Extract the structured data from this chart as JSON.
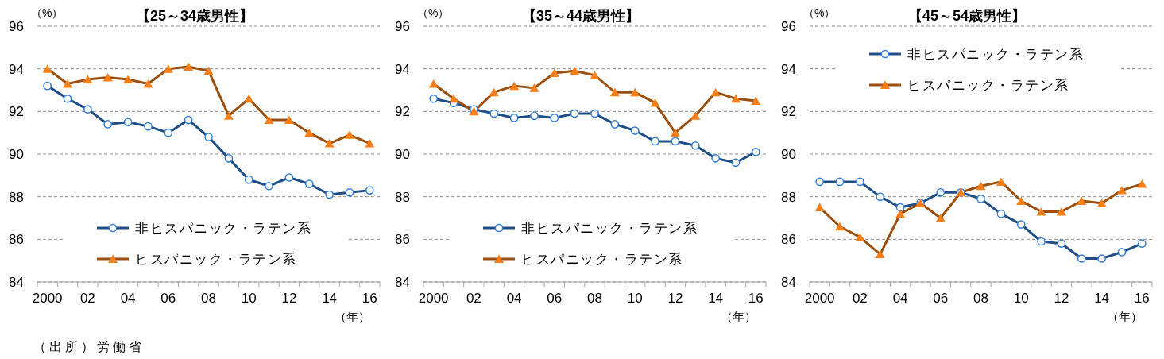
{
  "chart_data": [
    {
      "type": "line",
      "title": "【25～34歳男性】",
      "ylabel": "（%）",
      "xlabel": "（年）",
      "annotations": [
        "（出所）労働省"
      ],
      "categories": [
        "2000",
        null,
        "02",
        null,
        "04",
        null,
        "06",
        null,
        "08",
        null,
        "10",
        null,
        "12",
        null,
        "14",
        null,
        "16"
      ],
      "ylim": [
        84,
        96
      ],
      "yticks": [
        84,
        86,
        88,
        90,
        92,
        94,
        96
      ],
      "grid": "y",
      "legend": "bottom",
      "series": [
        {
          "name": "非ヒスパニック・ラテン系",
          "color": "#1f4e87",
          "marker": "circle",
          "values": [
            93.2,
            92.6,
            92.1,
            91.4,
            91.5,
            91.3,
            91.0,
            91.6,
            90.8,
            89.8,
            88.8,
            88.5,
            88.9,
            88.6,
            88.1,
            88.2,
            88.3
          ]
        },
        {
          "name": "ヒスパニック・ラテン系",
          "color": "#9b4f0f",
          "marker": "triangle",
          "values": [
            94.0,
            93.3,
            93.5,
            93.6,
            93.5,
            93.3,
            94.0,
            94.1,
            93.9,
            91.8,
            92.6,
            91.6,
            91.6,
            91.0,
            90.5,
            90.9,
            90.5
          ]
        }
      ]
    },
    {
      "type": "line",
      "title": "【35～44歳男性】",
      "ylabel": "（%）",
      "xlabel": "（年）",
      "categories": [
        "2000",
        null,
        "02",
        null,
        "04",
        null,
        "06",
        null,
        "08",
        null,
        "10",
        null,
        "12",
        null,
        "14",
        null,
        "16"
      ],
      "ylim": [
        84,
        96
      ],
      "yticks": [
        84,
        86,
        88,
        90,
        92,
        94,
        96
      ],
      "grid": "y",
      "legend": "bottom",
      "series": [
        {
          "name": "非ヒスパニック・ラテン系",
          "color": "#1f4e87",
          "marker": "circle",
          "values": [
            92.6,
            92.4,
            92.1,
            91.9,
            91.7,
            91.8,
            91.7,
            91.9,
            91.9,
            91.4,
            91.1,
            90.6,
            90.6,
            90.4,
            89.8,
            89.6,
            90.1
          ]
        },
        {
          "name": "ヒスパニック・ラテン系",
          "color": "#9b4f0f",
          "marker": "triangle",
          "values": [
            93.3,
            92.6,
            92.0,
            92.9,
            93.2,
            93.1,
            93.8,
            93.9,
            93.7,
            92.9,
            92.9,
            92.4,
            91.0,
            91.8,
            92.9,
            92.6,
            92.5
          ]
        }
      ]
    },
    {
      "type": "line",
      "title": "【45～54歳男性】",
      "ylabel": "（%）",
      "xlabel": "（年）",
      "categories": [
        "2000",
        null,
        "02",
        null,
        "04",
        null,
        "06",
        null,
        "08",
        null,
        "10",
        null,
        "12",
        null,
        "14",
        null,
        "16"
      ],
      "ylim": [
        84,
        96
      ],
      "yticks": [
        84,
        86,
        88,
        90,
        92,
        94,
        96
      ],
      "grid": "y",
      "legend": "top",
      "series": [
        {
          "name": "非ヒスパニック・ラテン系",
          "color": "#1f4e87",
          "marker": "circle",
          "values": [
            88.7,
            88.7,
            88.7,
            88.0,
            87.5,
            87.7,
            88.2,
            88.2,
            87.9,
            87.2,
            86.7,
            85.9,
            85.8,
            85.1,
            85.1,
            85.4,
            85.8
          ]
        },
        {
          "name": "ヒスパニック・ラテン系",
          "color": "#9b4f0f",
          "marker": "triangle",
          "values": [
            87.5,
            86.6,
            86.1,
            85.3,
            87.2,
            87.7,
            87.0,
            88.2,
            88.5,
            88.7,
            87.8,
            87.3,
            87.3,
            87.8,
            87.7,
            88.3,
            88.6
          ]
        }
      ]
    }
  ]
}
